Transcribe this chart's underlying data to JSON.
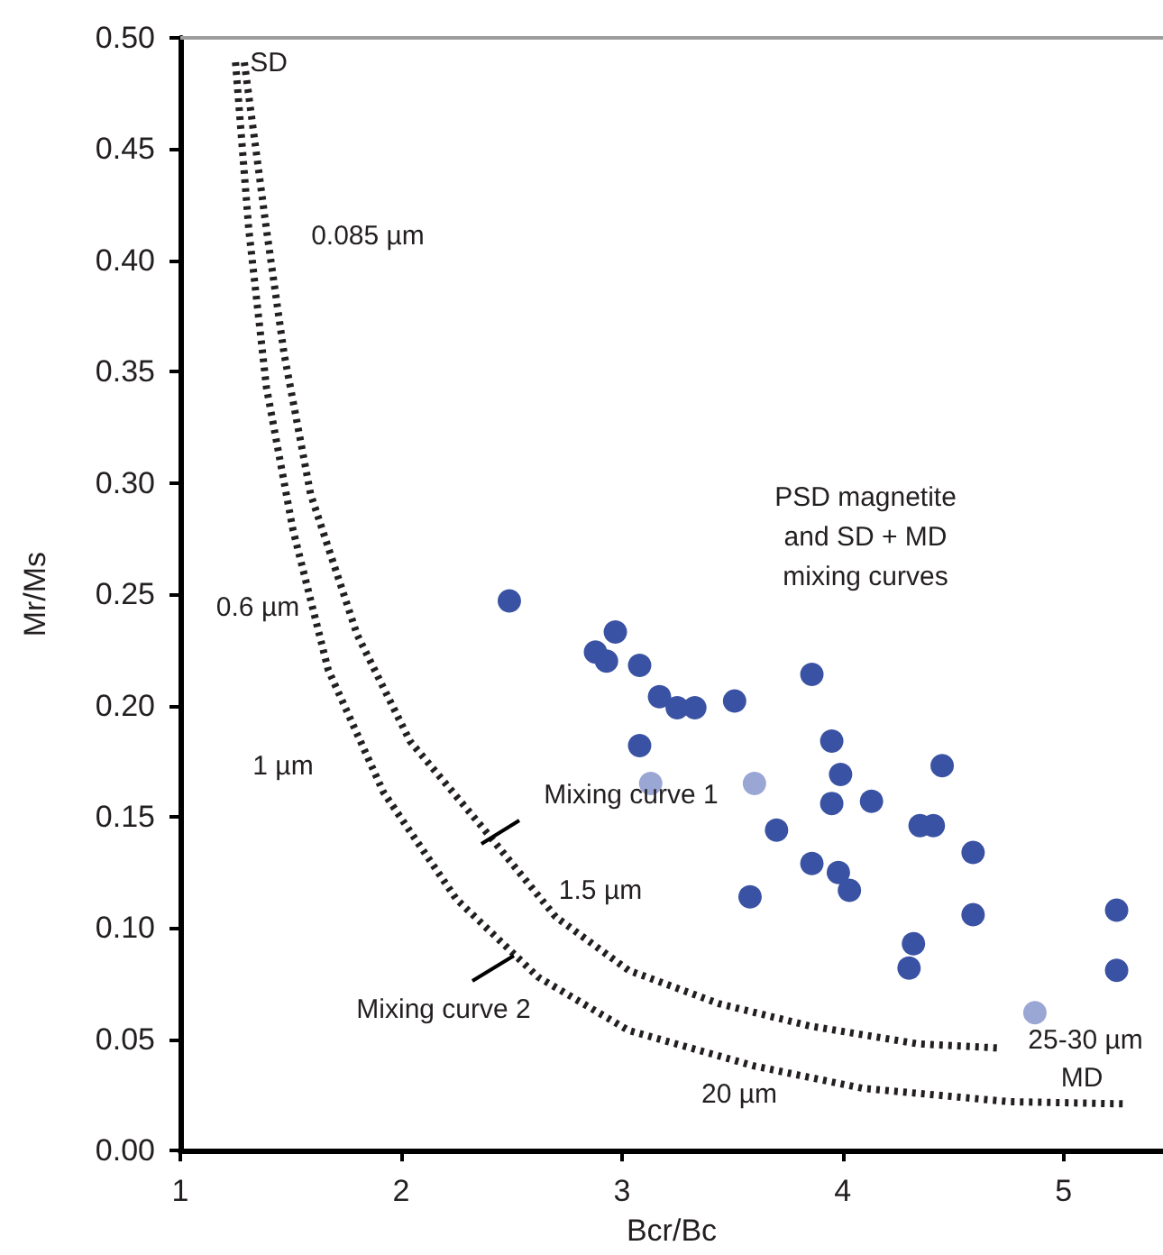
{
  "chart_data": {
    "type": "scatter",
    "xlabel": "Bcr/Bc",
    "ylabel": "Mr/Ms",
    "xlim": [
      1,
      5.45
    ],
    "ylim": [
      0,
      0.5
    ],
    "xticks": [
      1,
      2,
      3,
      4,
      5
    ],
    "yticks": [
      {
        "value": 0,
        "label": "0.00"
      },
      {
        "value": 0.05,
        "label": "0.05"
      },
      {
        "value": 0.1,
        "label": "0.10"
      },
      {
        "value": 0.15,
        "label": "0.15"
      },
      {
        "value": 0.2,
        "label": "0.20"
      },
      {
        "value": 0.25,
        "label": "0.25"
      },
      {
        "value": 0.3,
        "label": "0.30"
      },
      {
        "value": 0.35,
        "label": "0.35"
      },
      {
        "value": 0.4,
        "label": "0.40"
      },
      {
        "value": 0.45,
        "label": "0.45"
      },
      {
        "value": 0.5,
        "label": "0.50"
      }
    ],
    "grid": false,
    "marker": "circle",
    "series": [
      {
        "color": "#3a52a3",
        "x": [
          2.49,
          2.97,
          2.88,
          2.93,
          3.08,
          3.17,
          3.25,
          3.33,
          3.51,
          3.08,
          3.86,
          3.95,
          3.99,
          3.95,
          4.13,
          4.45,
          3.7,
          4.35,
          4.41,
          4.59,
          3.86,
          3.98,
          4.03,
          3.58,
          4.32,
          4.3,
          4.59,
          5.24,
          5.24
        ],
        "values": [
          0.247,
          0.233,
          0.224,
          0.22,
          0.218,
          0.204,
          0.199,
          0.199,
          0.202,
          0.182,
          0.214,
          0.184,
          0.169,
          0.156,
          0.157,
          0.173,
          0.144,
          0.146,
          0.146,
          0.134,
          0.129,
          0.125,
          0.117,
          0.114,
          0.093,
          0.082,
          0.106,
          0.108,
          0.081
        ]
      },
      {
        "color": "#9aa6d3",
        "x": [
          3.13,
          3.6,
          4.87
        ],
        "values": [
          0.165,
          0.165,
          0.062
        ]
      },
      {
        "type": "line",
        "color": "#231f20",
        "marker": "none",
        "line_style": "dotted",
        "x": [
          1.29,
          1.39,
          1.47,
          1.59,
          1.8,
          2.04,
          2.37,
          2.7,
          3.03,
          3.44,
          3.85,
          4.34,
          4.72
        ],
        "values": [
          0.489,
          0.414,
          0.358,
          0.295,
          0.232,
          0.184,
          0.145,
          0.105,
          0.081,
          0.066,
          0.056,
          0.048,
          0.046
        ]
      },
      {
        "type": "line",
        "color": "#231f20",
        "marker": "none",
        "line_style": "dotted",
        "x": [
          1.25,
          1.31,
          1.39,
          1.51,
          1.67,
          1.92,
          2.25,
          2.62,
          3.03,
          3.6,
          4.09,
          4.75,
          5.27
        ],
        "values": [
          0.489,
          0.414,
          0.343,
          0.279,
          0.216,
          0.161,
          0.113,
          0.078,
          0.054,
          0.038,
          0.028,
          0.022,
          0.021
        ]
      }
    ],
    "annotations": [
      "SD",
      "0.085 µm",
      "0.6 µm",
      "1 µm",
      "Mixing curve 1",
      "1.5 µm",
      "Mixing curve 2",
      "20 µm",
      "25-30 µm",
      "MD",
      "PSD magnetite\nand SD + MD\nmixing curves"
    ]
  }
}
